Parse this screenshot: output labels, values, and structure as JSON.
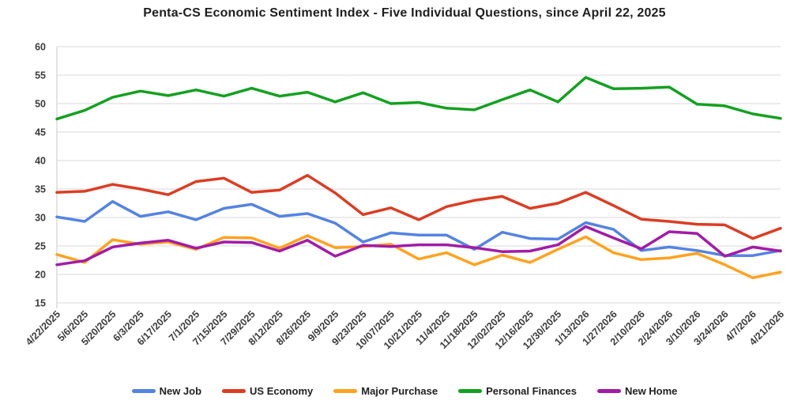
{
  "title": "Penta-CS Economic Sentiment Index - Five Individual Questions, since April 22, 2025",
  "chart_data": {
    "type": "line",
    "title": "Penta-CS Economic Sentiment Index - Five Individual Questions, since April 22, 2025",
    "x_labels": [
      "4/22/2025",
      "5/6/2025",
      "5/20/2025",
      "6/3/2025",
      "6/17/2025",
      "7/1/2025",
      "7/15/2025",
      "7/29/2025",
      "8/12/2025",
      "8/26/2025",
      "9/9/2025",
      "9/23/2025",
      "10/07/2025",
      "10/21/2025",
      "11/4/2025",
      "11/18/2025",
      "12/02/2025",
      "12/16/2025",
      "12/30/2025",
      "1/13/2026",
      "1/27/2026",
      "2/10/2026",
      "2/24/2026",
      "3/10/2026",
      "3/24/2026",
      "4/7/2026",
      "4/21/2026"
    ],
    "ylim": [
      15,
      60
    ],
    "y_ticks": [
      15,
      20,
      25,
      30,
      35,
      40,
      45,
      50,
      55,
      60
    ],
    "grid": "horizontal-only",
    "legend_position": "bottom",
    "series": [
      {
        "name": "New Job",
        "color": "#5483E2",
        "values": [
          30.1,
          29.3,
          32.8,
          30.2,
          31.0,
          29.6,
          31.6,
          32.3,
          30.2,
          30.7,
          29.0,
          25.7,
          27.3,
          26.9,
          26.9,
          24.4,
          27.4,
          26.3,
          26.2,
          29.1,
          27.9,
          24.2,
          24.8,
          24.2,
          23.3,
          23.3,
          24.2
        ]
      },
      {
        "name": "US Economy",
        "color": "#DC3D23",
        "values": [
          34.4,
          34.6,
          35.8,
          35.0,
          34.0,
          36.3,
          36.9,
          34.4,
          34.8,
          37.4,
          34.3,
          30.5,
          31.7,
          29.6,
          31.9,
          33.0,
          33.7,
          31.6,
          32.5,
          34.4,
          32.1,
          29.7,
          29.3,
          28.8,
          28.7,
          26.3,
          28.1
        ]
      },
      {
        "name": "Major Purchase",
        "color": "#FFA21F",
        "values": [
          23.5,
          22.1,
          26.1,
          25.3,
          25.7,
          24.4,
          26.5,
          26.4,
          24.6,
          26.8,
          24.7,
          24.9,
          25.3,
          22.7,
          23.8,
          21.7,
          23.4,
          22.1,
          24.4,
          26.6,
          23.8,
          22.6,
          22.9,
          23.7,
          21.7,
          19.4,
          20.4
        ]
      },
      {
        "name": "Personal Finances",
        "color": "#13A120",
        "values": [
          47.3,
          48.8,
          51.1,
          52.2,
          51.4,
          52.4,
          51.3,
          52.7,
          51.3,
          52.0,
          50.3,
          51.9,
          50.0,
          50.2,
          49.2,
          48.9,
          50.7,
          52.4,
          50.3,
          54.6,
          52.6,
          52.7,
          52.9,
          49.9,
          49.6,
          48.2,
          47.4
        ]
      },
      {
        "name": "New Home",
        "color": "#A11CA7",
        "values": [
          21.7,
          22.4,
          24.8,
          25.5,
          26.0,
          24.6,
          25.7,
          25.6,
          24.1,
          26.0,
          23.2,
          25.1,
          24.9,
          25.2,
          25.2,
          24.7,
          24.0,
          24.1,
          25.2,
          28.4,
          26.4,
          24.5,
          27.5,
          27.2,
          23.2,
          24.8,
          24.1
        ]
      }
    ],
    "colors": {
      "gridline": "#D9D9D9",
      "axis_line": "#C9C9C9",
      "axis_text": "#3B3B3B",
      "title_text": "#1E1E1E"
    }
  }
}
